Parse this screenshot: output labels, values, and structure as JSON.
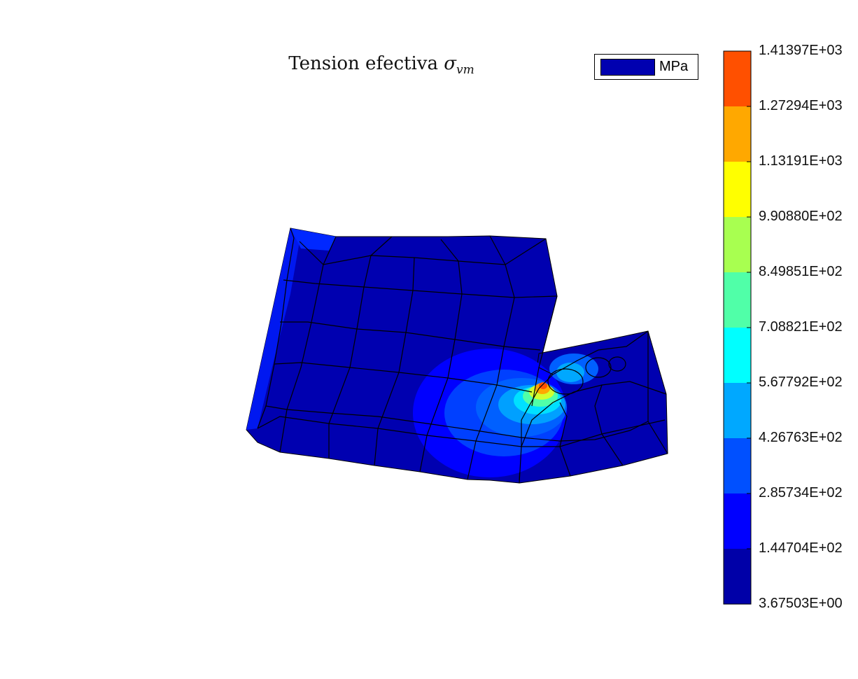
{
  "chart_data": {
    "type": "heatmap",
    "title": "Tension efectiva",
    "title_symbol": "σ",
    "title_subscript": "vm",
    "legend": {
      "label": "MPa",
      "color": "#0000b0"
    },
    "colorbar": {
      "ticks": [
        "3.67503E+00",
        "1.44704E+02",
        "2.85734E+02",
        "4.26763E+02",
        "5.67792E+02",
        "7.08821E+02",
        "8.49851E+02",
        "9.90880E+02",
        "1.13191E+03",
        "1.27294E+03",
        "1.41397E+03"
      ],
      "range": [
        3.67503,
        1413.97
      ],
      "colors": [
        "#0000a8",
        "#0000ff",
        "#0050ff",
        "#00a8ff",
        "#00ffff",
        "#50ffa8",
        "#a8ff50",
        "#ffff00",
        "#ffa800",
        "#ff5000"
      ]
    }
  }
}
